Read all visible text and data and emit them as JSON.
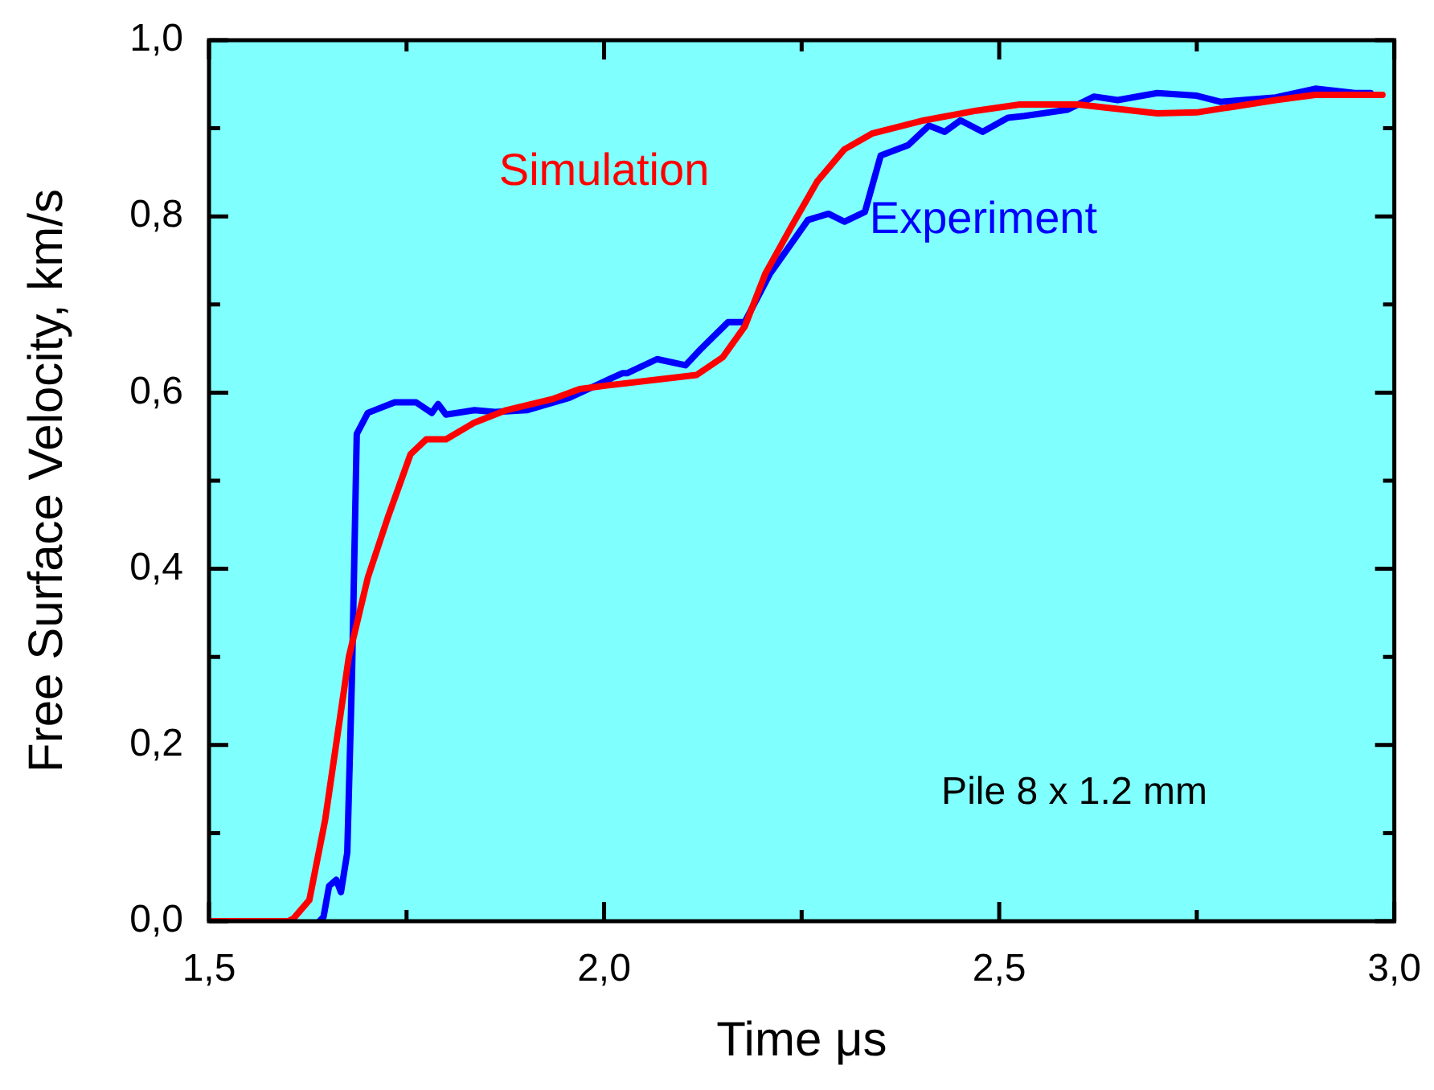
{
  "chart_data": {
    "type": "line",
    "xlabel": "Time μs",
    "ylabel": "Free Surface Velocity, km/s",
    "annotations": [
      "Pile 8 x 1.2 mm"
    ],
    "xlim": [
      1.5,
      3.0
    ],
    "ylim": [
      0,
      1.0
    ],
    "xticks": [
      {
        "value": 1.5,
        "label": "1,5"
      },
      {
        "value": 1.75,
        "label": null
      },
      {
        "value": 2.0,
        "label": "2,0"
      },
      {
        "value": 2.25,
        "label": null
      },
      {
        "value": 2.5,
        "label": "2,5"
      },
      {
        "value": 2.75,
        "label": null
      },
      {
        "value": 3.0,
        "label": "3,0"
      }
    ],
    "yticks": [
      {
        "value": 0,
        "label": "0,0"
      },
      {
        "value": 0.1,
        "label": null
      },
      {
        "value": 0.2,
        "label": "0,2"
      },
      {
        "value": 0.3,
        "label": null
      },
      {
        "value": 0.4,
        "label": "0,4"
      },
      {
        "value": 0.5,
        "label": null
      },
      {
        "value": 0.6,
        "label": "0,6"
      },
      {
        "value": 0.7,
        "label": null
      },
      {
        "value": 0.8,
        "label": "0,8"
      },
      {
        "value": 0.9,
        "label": null
      },
      {
        "value": 1.0,
        "label": "1,0"
      }
    ],
    "grid": false,
    "legend": false,
    "marker": "none",
    "line_style": "solid",
    "series": [
      {
        "name": "Simulation",
        "color": "#ff0000",
        "x": [
          1.5,
          1.6,
          1.607,
          1.627,
          1.647,
          1.677,
          1.701,
          1.727,
          1.755,
          1.775,
          1.8,
          1.836,
          1.876,
          1.936,
          1.969,
          2.003,
          2.117,
          2.15,
          2.178,
          2.204,
          2.238,
          2.27,
          2.304,
          2.339,
          2.405,
          2.471,
          2.526,
          2.6,
          2.65,
          2.7,
          2.75,
          2.8,
          2.85,
          2.9,
          2.985
        ],
        "values": [
          0,
          0,
          0.003,
          0.024,
          0.115,
          0.3,
          0.39,
          0.46,
          0.53,
          0.547,
          0.547,
          0.566,
          0.58,
          0.593,
          0.604,
          0.608,
          0.62,
          0.64,
          0.675,
          0.735,
          0.79,
          0.84,
          0.876,
          0.894,
          0.909,
          0.92,
          0.927,
          0.927,
          0.922,
          0.917,
          0.918,
          0.925,
          0.932,
          0.938,
          0.938
        ]
      },
      {
        "name": "Experiment",
        "color": "#0000ff",
        "x": [
          1.64,
          1.645,
          1.652,
          1.661,
          1.667,
          1.675,
          1.681,
          1.687,
          1.701,
          1.735,
          1.762,
          1.782,
          1.79,
          1.8,
          1.836,
          1.862,
          1.902,
          1.956,
          2.023,
          2.029,
          2.067,
          2.103,
          2.123,
          2.157,
          2.178,
          2.21,
          2.258,
          2.284,
          2.304,
          2.33,
          2.35,
          2.385,
          2.411,
          2.431,
          2.451,
          2.479,
          2.511,
          2.532,
          2.586,
          2.62,
          2.65,
          2.7,
          2.75,
          2.78,
          2.85,
          2.9,
          2.95,
          2.97
        ],
        "values": [
          0,
          0.005,
          0.04,
          0.047,
          0.033,
          0.078,
          0.28,
          0.553,
          0.577,
          0.589,
          0.589,
          0.577,
          0.587,
          0.575,
          0.58,
          0.578,
          0.58,
          0.594,
          0.622,
          0.622,
          0.638,
          0.631,
          0.65,
          0.68,
          0.68,
          0.735,
          0.796,
          0.803,
          0.794,
          0.805,
          0.869,
          0.881,
          0.903,
          0.896,
          0.909,
          0.896,
          0.912,
          0.914,
          0.921,
          0.936,
          0.932,
          0.94,
          0.937,
          0.93,
          0.935,
          0.945,
          0.94,
          0.94
        ]
      }
    ]
  }
}
